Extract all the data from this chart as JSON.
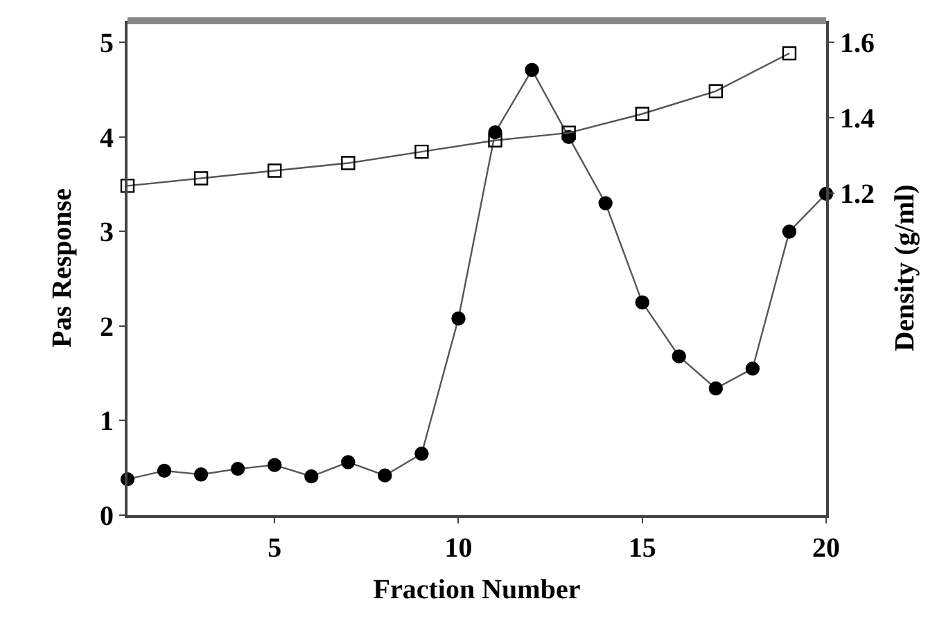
{
  "chart_data": {
    "type": "line",
    "xlabel": "Fraction Number",
    "ylabel": "Pas Response",
    "y2label": "Density (g/ml)",
    "xlim": [
      1,
      20
    ],
    "xticks": [
      5,
      10,
      15,
      20
    ],
    "ylim": [
      0,
      5.23
    ],
    "yticks": [
      0,
      1,
      2,
      3,
      4,
      5
    ],
    "y2lim": [
      0.35,
      1.656
    ],
    "y2ticks": [
      1.2,
      1.4,
      1.6
    ],
    "series": [
      {
        "color": "#000000",
        "marker": "circle",
        "x": [
          1,
          2,
          3,
          4,
          5,
          6,
          7,
          8,
          9,
          10,
          11,
          12,
          13,
          14,
          15,
          16,
          17,
          18,
          19,
          20
        ],
        "values": [
          0.38,
          0.47,
          0.43,
          0.49,
          0.53,
          0.41,
          0.56,
          0.42,
          0.65,
          2.08,
          4.05,
          4.71,
          4.0,
          3.3,
          2.25,
          1.68,
          1.34,
          1.55,
          3.0,
          3.4
        ]
      },
      {
        "color": "#000000",
        "marker": "square",
        "axis": "y2",
        "x": [
          1,
          3,
          5,
          7,
          9,
          11,
          13,
          15,
          17,
          19
        ],
        "values": [
          1.22,
          1.24,
          1.26,
          1.28,
          1.31,
          1.34,
          1.36,
          1.41,
          1.47,
          1.57
        ]
      }
    ]
  }
}
